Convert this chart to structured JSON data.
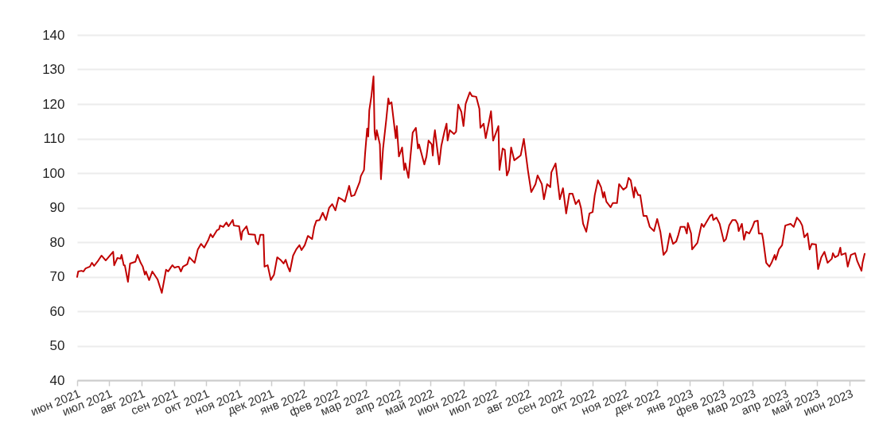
{
  "chart_data": {
    "type": "line",
    "grid": "y",
    "line_style": "solid",
    "xlim": [
      "2021-06-01",
      "2023-06-15"
    ],
    "ylim": [
      40,
      140
    ],
    "yticks": [
      40,
      50,
      60,
      70,
      80,
      90,
      100,
      110,
      120,
      130,
      140
    ],
    "xticks": [
      {
        "value": "2021-06-01",
        "label": "июн 2021"
      },
      {
        "value": "2021-07-01",
        "label": "июл 2021"
      },
      {
        "value": "2021-08-01",
        "label": "авг 2021"
      },
      {
        "value": "2021-09-01",
        "label": "сен 2021"
      },
      {
        "value": "2021-10-01",
        "label": "окт 2021"
      },
      {
        "value": "2021-11-01",
        "label": "ноя 2021"
      },
      {
        "value": "2021-12-01",
        "label": "дек 2021"
      },
      {
        "value": "2022-01-01",
        "label": "янв 2022"
      },
      {
        "value": "2022-02-01",
        "label": "фев 2022"
      },
      {
        "value": "2022-03-01",
        "label": "мар 2022"
      },
      {
        "value": "2022-04-01",
        "label": "апр 2022"
      },
      {
        "value": "2022-05-01",
        "label": "май 2022"
      },
      {
        "value": "2022-06-01",
        "label": "июн 2022"
      },
      {
        "value": "2022-07-01",
        "label": "июл 2022"
      },
      {
        "value": "2022-08-01",
        "label": "авг 2022"
      },
      {
        "value": "2022-09-01",
        "label": "сен 2022"
      },
      {
        "value": "2022-10-01",
        "label": "окт 2022"
      },
      {
        "value": "2022-11-01",
        "label": "ноя 2022"
      },
      {
        "value": "2022-12-01",
        "label": "дек 2022"
      },
      {
        "value": "2023-01-01",
        "label": "янв 2023"
      },
      {
        "value": "2023-02-01",
        "label": "фев 2023"
      },
      {
        "value": "2023-03-01",
        "label": "мар 2023"
      },
      {
        "value": "2023-04-01",
        "label": "апр 2023"
      },
      {
        "value": "2023-05-01",
        "label": "май 2023"
      },
      {
        "value": "2023-06-01",
        "label": "июн 2023"
      }
    ],
    "x": [
      "2021-06-01",
      "2021-06-02",
      "2021-06-05",
      "2021-06-07",
      "2021-06-09",
      "2021-06-13",
      "2021-06-15",
      "2021-06-17",
      "2021-06-21",
      "2021-06-24",
      "2021-06-28",
      "2021-07-05",
      "2021-07-06",
      "2021-07-09",
      "2021-07-12",
      "2021-07-13",
      "2021-07-15",
      "2021-07-16",
      "2021-07-19",
      "2021-07-21",
      "2021-07-26",
      "2021-07-28",
      "2021-07-31",
      "2021-08-02",
      "2021-08-04",
      "2021-08-05",
      "2021-08-08",
      "2021-08-11",
      "2021-08-16",
      "2021-08-20",
      "2021-08-24",
      "2021-08-26",
      "2021-08-29",
      "2021-08-30",
      "2021-09-01",
      "2021-09-04",
      "2021-09-05",
      "2021-09-07",
      "2021-09-09",
      "2021-09-13",
      "2021-09-15",
      "2021-09-20",
      "2021-09-23",
      "2021-09-26",
      "2021-09-29",
      "2021-10-03",
      "2021-10-05",
      "2021-10-07",
      "2021-10-11",
      "2021-10-13",
      "2021-10-14",
      "2021-10-17",
      "2021-10-20",
      "2021-10-22",
      "2021-10-26",
      "2021-10-27",
      "2021-11-01",
      "2021-11-03",
      "2021-11-04",
      "2021-11-08",
      "2021-11-10",
      "2021-11-16",
      "2021-11-17",
      "2021-11-19",
      "2021-11-21",
      "2021-11-24",
      "2021-11-25",
      "2021-11-28",
      "2021-12-01",
      "2021-12-04",
      "2021-12-07",
      "2021-12-10",
      "2021-12-13",
      "2021-12-15",
      "2021-12-17",
      "2021-12-19",
      "2021-12-22",
      "2021-12-25",
      "2021-12-28",
      "2021-12-30",
      "2022-01-02",
      "2022-01-05",
      "2022-01-09",
      "2022-01-11",
      "2022-01-13",
      "2022-01-16",
      "2022-01-19",
      "2022-01-22",
      "2022-01-25",
      "2022-01-28",
      "2022-01-31",
      "2022-02-03",
      "2022-02-06",
      "2022-02-09",
      "2022-02-12",
      "2022-02-13",
      "2022-02-15",
      "2022-02-18",
      "2022-02-23",
      "2022-02-24",
      "2022-02-27",
      "2022-02-28",
      "2022-03-02",
      "2022-03-03",
      "2022-03-04",
      "2022-03-06",
      "2022-03-08",
      "2022-03-09",
      "2022-03-10",
      "2022-03-11",
      "2022-03-14",
      "2022-03-15",
      "2022-03-17",
      "2022-03-20",
      "2022-03-22",
      "2022-03-23",
      "2022-03-25",
      "2022-03-29",
      "2022-03-30",
      "2022-04-01",
      "2022-04-04",
      "2022-04-06",
      "2022-04-07",
      "2022-04-10",
      "2022-04-14",
      "2022-04-17",
      "2022-04-19",
      "2022-04-20",
      "2022-04-25",
      "2022-04-27",
      "2022-04-29",
      "2022-05-02",
      "2022-05-03",
      "2022-05-04",
      "2022-05-05",
      "2022-05-09",
      "2022-05-11",
      "2022-05-14",
      "2022-05-16",
      "2022-05-17",
      "2022-05-19",
      "2022-05-23",
      "2022-05-25",
      "2022-05-27",
      "2022-05-30",
      "2022-06-01",
      "2022-06-03",
      "2022-06-04",
      "2022-06-07",
      "2022-06-09",
      "2022-06-13",
      "2022-06-16",
      "2022-06-17",
      "2022-06-20",
      "2022-06-22",
      "2022-06-25",
      "2022-06-27",
      "2022-06-29",
      "2022-07-04",
      "2022-07-05",
      "2022-07-08",
      "2022-07-10",
      "2022-07-12",
      "2022-07-14",
      "2022-07-16",
      "2022-07-19",
      "2022-07-22",
      "2022-07-25",
      "2022-07-28",
      "2022-08-01",
      "2022-08-04",
      "2022-08-08",
      "2022-08-10",
      "2022-08-14",
      "2022-08-16",
      "2022-08-19",
      "2022-08-22",
      "2022-08-23",
      "2022-08-27",
      "2022-08-31",
      "2022-09-03",
      "2022-09-06",
      "2022-09-09",
      "2022-09-12",
      "2022-09-15",
      "2022-09-18",
      "2022-09-20",
      "2022-09-22",
      "2022-09-25",
      "2022-09-28",
      "2022-10-01",
      "2022-10-03",
      "2022-10-06",
      "2022-10-09",
      "2022-10-11",
      "2022-10-12",
      "2022-10-14",
      "2022-10-18",
      "2022-10-20",
      "2022-10-24",
      "2022-10-26",
      "2022-10-30",
      "2022-11-02",
      "2022-11-04",
      "2022-11-06",
      "2022-11-09",
      "2022-11-10",
      "2022-11-13",
      "2022-11-15",
      "2022-11-18",
      "2022-11-21",
      "2022-11-24",
      "2022-11-28",
      "2022-12-01",
      "2022-12-04",
      "2022-12-07",
      "2022-12-10",
      "2022-12-13",
      "2022-12-16",
      "2022-12-19",
      "2022-12-21",
      "2022-12-23",
      "2022-12-27",
      "2022-12-29",
      "2022-12-30",
      "2023-01-02",
      "2023-01-03",
      "2023-01-08",
      "2023-01-12",
      "2023-01-14",
      "2023-01-16",
      "2023-01-20",
      "2023-01-22",
      "2023-01-23",
      "2023-01-26",
      "2023-01-29",
      "2023-02-02",
      "2023-02-04",
      "2023-02-07",
      "2023-02-10",
      "2023-02-13",
      "2023-02-15",
      "2023-02-16",
      "2023-02-19",
      "2023-02-21",
      "2023-02-23",
      "2023-02-26",
      "2023-03-01",
      "2023-03-03",
      "2023-03-06",
      "2023-03-07",
      "2023-03-10",
      "2023-03-11",
      "2023-03-14",
      "2023-03-17",
      "2023-03-19",
      "2023-03-22",
      "2023-03-23",
      "2023-03-26",
      "2023-03-29",
      "2023-04-01",
      "2023-04-06",
      "2023-04-09",
      "2023-04-12",
      "2023-04-15",
      "2023-04-17",
      "2023-04-19",
      "2023-04-22",
      "2023-04-24",
      "2023-04-26",
      "2023-04-30",
      "2023-05-02",
      "2023-05-05",
      "2023-05-08",
      "2023-05-11",
      "2023-05-15",
      "2023-05-16",
      "2023-05-18",
      "2023-05-21",
      "2023-05-23",
      "2023-05-24",
      "2023-05-28",
      "2023-05-30",
      "2023-06-02",
      "2023-06-06",
      "2023-06-08",
      "2023-06-12",
      "2023-06-13",
      "2023-06-15"
    ],
    "series": [
      {
        "color": "#c00000",
        "values": [
          69.9,
          71.5,
          71.7,
          71.5,
          72.4,
          72.9,
          74.0,
          73.1,
          74.7,
          76.1,
          74.7,
          77.2,
          73.3,
          75.4,
          75.2,
          76.3,
          73.3,
          73.3,
          68.5,
          73.8,
          74.3,
          76.3,
          74.0,
          72.9,
          70.6,
          71.5,
          69.0,
          71.5,
          69.2,
          65.3,
          72.0,
          71.5,
          72.9,
          73.3,
          72.6,
          72.9,
          72.9,
          71.5,
          72.9,
          73.6,
          75.6,
          74.0,
          77.9,
          79.5,
          78.4,
          80.7,
          82.3,
          81.4,
          83.4,
          83.7,
          84.8,
          84.4,
          85.7,
          84.6,
          86.4,
          84.8,
          84.6,
          80.7,
          83.0,
          84.6,
          82.3,
          82.1,
          80.2,
          79.3,
          82.1,
          82.1,
          72.9,
          73.3,
          69.0,
          70.6,
          75.6,
          74.9,
          73.8,
          74.9,
          72.9,
          71.5,
          76.1,
          77.9,
          79.1,
          77.7,
          79.1,
          81.8,
          80.9,
          84.4,
          86.2,
          86.4,
          88.5,
          86.4,
          89.9,
          91.0,
          89.2,
          92.9,
          92.4,
          91.7,
          95.2,
          96.3,
          93.3,
          93.6,
          97.5,
          99.1,
          100.9,
          105.5,
          112.9,
          110.6,
          118.2,
          122.3,
          128.0,
          112.0,
          109.7,
          112.4,
          108.3,
          98.2,
          107.1,
          115.4,
          121.6,
          120.0,
          120.5,
          110.1,
          113.6,
          104.8,
          107.4,
          100.9,
          102.8,
          98.6,
          111.7,
          113.1,
          107.1,
          108.3,
          102.5,
          104.8,
          109.4,
          108.3,
          105.1,
          110.1,
          112.4,
          102.5,
          107.8,
          112.0,
          114.3,
          109.4,
          112.4,
          111.3,
          112.0,
          119.8,
          117.7,
          113.6,
          120.0,
          120.9,
          123.4,
          122.3,
          122.1,
          118.6,
          113.1,
          114.3,
          110.1,
          114.7,
          117.9,
          109.4,
          113.6,
          100.9,
          107.1,
          106.7,
          99.3,
          100.9,
          107.4,
          103.7,
          104.4,
          105.1,
          109.9,
          100.5,
          94.5,
          96.8,
          99.3,
          96.8,
          92.4,
          96.8,
          95.9,
          100.2,
          102.8,
          92.4,
          95.6,
          88.3,
          94.0,
          94.0,
          91.0,
          92.2,
          89.9,
          85.3,
          83.0,
          88.3,
          88.7,
          93.6,
          97.9,
          95.9,
          92.9,
          94.5,
          91.7,
          90.1,
          91.3,
          91.3,
          96.8,
          95.2,
          95.9,
          98.6,
          97.9,
          92.9,
          95.9,
          93.6,
          93.6,
          87.6,
          87.6,
          84.4,
          83.2,
          86.7,
          83.0,
          76.3,
          77.5,
          82.5,
          79.5,
          80.2,
          82.1,
          84.4,
          84.4,
          82.5,
          85.5,
          82.5,
          77.9,
          79.8,
          85.3,
          84.4,
          85.5,
          87.6,
          88.0,
          86.4,
          87.1,
          85.3,
          80.2,
          80.9,
          84.8,
          86.4,
          86.4,
          85.3,
          83.2,
          85.3,
          80.7,
          83.0,
          82.5,
          84.4,
          86.0,
          86.2,
          82.5,
          82.5,
          80.9,
          74.0,
          72.9,
          74.0,
          76.3,
          74.9,
          77.9,
          79.1,
          84.8,
          85.3,
          84.4,
          87.1,
          86.0,
          84.8,
          81.4,
          82.5,
          77.9,
          79.5,
          79.3,
          72.2,
          75.6,
          77.2,
          74.0,
          75.2,
          76.8,
          75.6,
          76.1,
          78.4,
          76.3,
          76.8,
          72.9,
          76.3,
          76.8,
          74.5,
          71.7,
          74.0,
          76.6
        ]
      }
    ]
  }
}
